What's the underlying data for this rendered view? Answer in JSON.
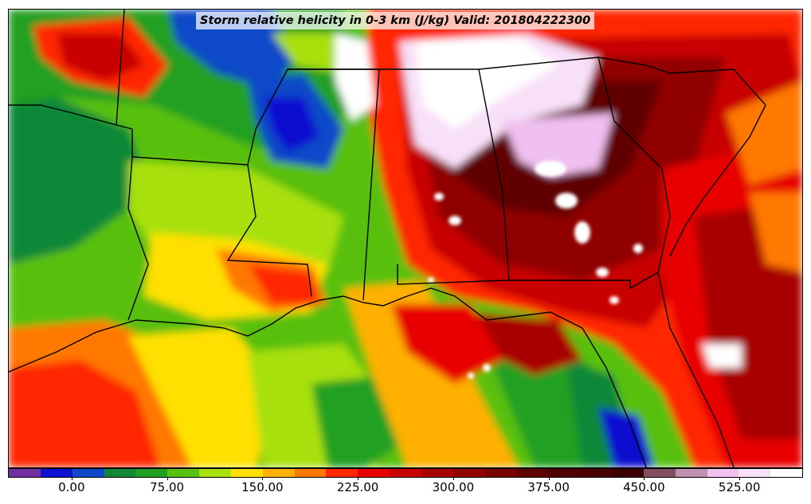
{
  "title": "Storm relative helicity in 0-3 km (J/kg) Valid: 201804222300",
  "colorbar": {
    "colors": [
      "#7030a0",
      "#1010d0",
      "#1048c8",
      "#108838",
      "#20a020",
      "#58c010",
      "#a8e010",
      "#ffe000",
      "#ffb000",
      "#ff7800",
      "#ff2800",
      "#e80000",
      "#c80000",
      "#a80000",
      "#900000",
      "#780000",
      "#600000",
      "#500000",
      "#4a0000",
      "#3c0000",
      "#805060",
      "#c090b0",
      "#f0c0f0",
      "#f8e0f8",
      "#ffffff"
    ],
    "tick_labels": [
      "0.00",
      "75.00",
      "150.00",
      "225.00",
      "300.00",
      "375.00",
      "450.00",
      "525.00"
    ],
    "tick_values": [
      0,
      75,
      150,
      225,
      300,
      375,
      450,
      525
    ],
    "range": [
      -50,
      575
    ]
  },
  "map": {
    "region": "Southeastern United States",
    "field": "storm-relative-helicity",
    "projection": "lambert-conformal"
  }
}
